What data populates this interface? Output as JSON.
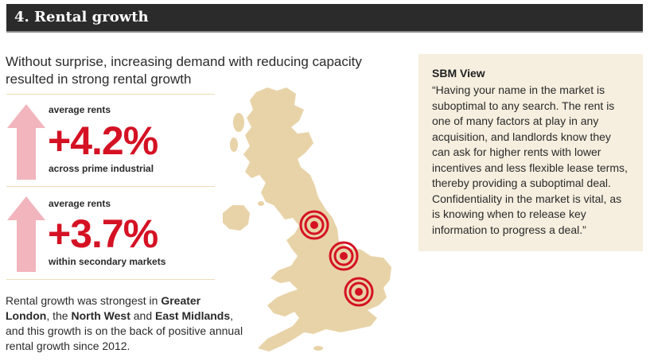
{
  "header": {
    "title": "4. Rental growth"
  },
  "intro": "Without surprise, increasing demand with reducing capacity resulted in strong rental growth",
  "stats": [
    {
      "label_top": "average rents",
      "value": "+4.2%",
      "label_bottom": "across prime industrial"
    },
    {
      "label_top": "average rents",
      "value": "+3.7%",
      "label_bottom": "within secondary markets"
    }
  ],
  "summary": {
    "part1": "Rental growth was strongest in ",
    "bold1": "Greater London",
    "part2": ", the ",
    "bold2": "North West",
    "part3": " and ",
    "bold3": "East Midlands",
    "part4": ", and this growth is on the back of positive annual rental growth since 2012."
  },
  "view": {
    "title": "SBM View",
    "quote": "“Having your name in the market is suboptimal to any search. The rent is one of many factors at play in any acquisition, and landlords know they can ask for higher rents with lower incentives and less flexible lease terms, thereby providing a suboptimal deal. Confidentiality in the market is vital, as is knowing when to release key information to progress a deal.”"
  },
  "colors": {
    "accent_red": "#d41224",
    "arrow_pink": "#f2b5bd",
    "map_tan": "#e8d3a8",
    "panel_bg": "#f6efdf",
    "header_bg": "#2b2b2b"
  },
  "icons": [
    "up-arrow-icon",
    "up-arrow-icon",
    "target-icon",
    "target-icon",
    "target-icon"
  ]
}
